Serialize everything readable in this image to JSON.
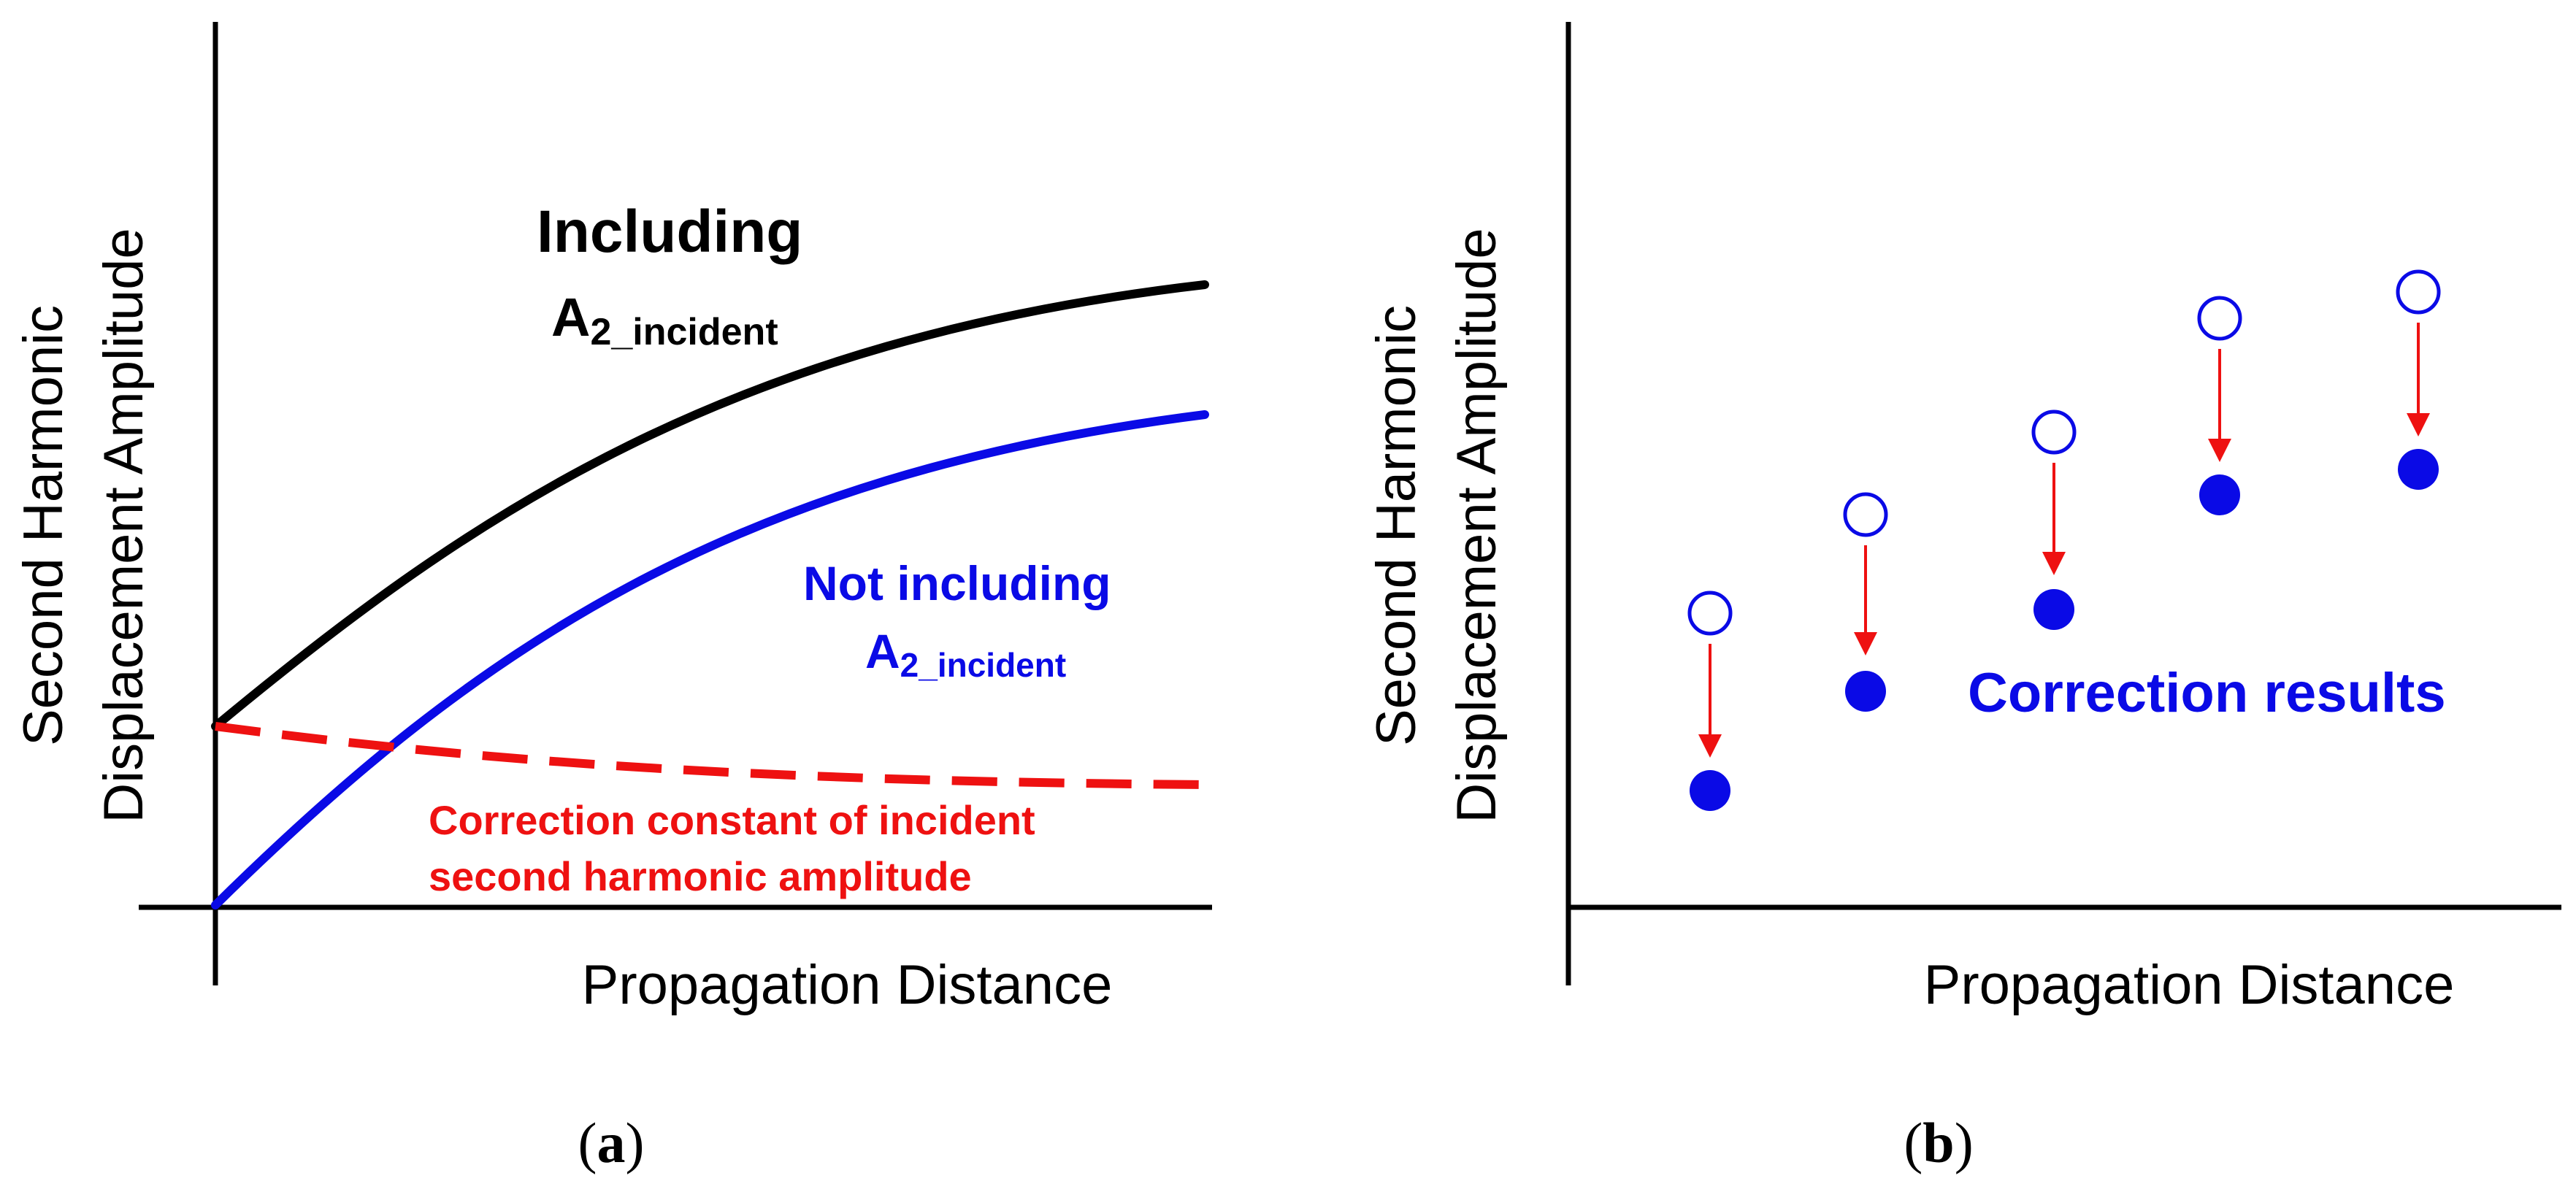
{
  "colors": {
    "black": "#000000",
    "blue": "#0a0ae6",
    "red": "#ee1111"
  },
  "panel_a": {
    "y_axis_title_line1": "Second Harmonic",
    "y_axis_title_line2": "Displacement Amplitude",
    "x_axis_title": "Propagation Distance",
    "curve_including": {
      "label_main": "Including",
      "label_base": "A",
      "label_sub": "2_incident"
    },
    "curve_not_including": {
      "label_line1": "Not including",
      "label_base": "A",
      "label_sub": "2_incident"
    },
    "correction_curve": {
      "label_line1": "Correction constant of incident",
      "label_line2": "second harmonic amplitude"
    },
    "caption": {
      "open": "(",
      "letter": "a",
      "close": ")"
    }
  },
  "panel_b": {
    "y_axis_title_line1": "Second Harmonic",
    "y_axis_title_line2": "Displacement Amplitude",
    "x_axis_title": "Propagation Distance",
    "annotation": "Correction results",
    "point_count": 5,
    "caption": {
      "open": "(",
      "letter": "b",
      "close": ")"
    }
  }
}
